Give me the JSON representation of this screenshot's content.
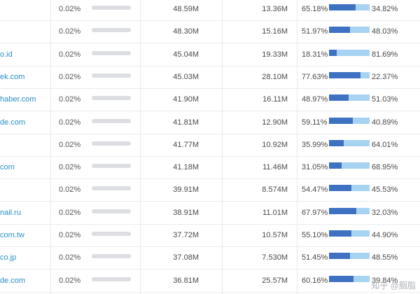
{
  "rows": [
    {
      "domain": "",
      "share": "0.02%",
      "visits": "48.59M",
      "unique": "13.36M",
      "left_pct": "65.18%",
      "right_pct": "34.82%",
      "split": 0.6518
    },
    {
      "domain": "",
      "share": "0.02%",
      "visits": "48.30M",
      "unique": "15.16M",
      "left_pct": "51.97%",
      "right_pct": "48.03%",
      "split": 0.5197
    },
    {
      "domain": "o.id",
      "share": "0.02%",
      "visits": "45.04M",
      "unique": "19.33M",
      "left_pct": "18.31%",
      "right_pct": "81.69%",
      "split": 0.1831
    },
    {
      "domain": "ek.com",
      "share": "0.02%",
      "visits": "45.03M",
      "unique": "28.10M",
      "left_pct": "77.63%",
      "right_pct": "22.37%",
      "split": 0.7763
    },
    {
      "domain": "haber.com",
      "share": "0.02%",
      "visits": "41.90M",
      "unique": "16.11M",
      "left_pct": "48.97%",
      "right_pct": "51.03%",
      "split": 0.4897
    },
    {
      "domain": "de.com",
      "share": "0.02%",
      "visits": "41.81M",
      "unique": "12.90M",
      "left_pct": "59.11%",
      "right_pct": "40.89%",
      "split": 0.5911
    },
    {
      "domain": "",
      "share": "0.02%",
      "visits": "41.77M",
      "unique": "10.92M",
      "left_pct": "35.99%",
      "right_pct": "64.01%",
      "split": 0.3599
    },
    {
      "domain": "com",
      "share": "0.02%",
      "visits": "41.18M",
      "unique": "11.46M",
      "left_pct": "31.05%",
      "right_pct": "68.95%",
      "split": 0.3105
    },
    {
      "domain": "",
      "share": "0.02%",
      "visits": "39.91M",
      "unique": "8.574M",
      "left_pct": "54.47%",
      "right_pct": "45.53%",
      "split": 0.5447
    },
    {
      "domain": "nail.ru",
      "share": "0.02%",
      "visits": "38.91M",
      "unique": "11.01M",
      "left_pct": "67.97%",
      "right_pct": "32.03%",
      "split": 0.6797
    },
    {
      "domain": "com.tw",
      "share": "0.02%",
      "visits": "37.72M",
      "unique": "10.57M",
      "left_pct": "55.10%",
      "right_pct": "44.90%",
      "split": 0.551
    },
    {
      "domain": "co.jp",
      "share": "0.02%",
      "visits": "37.08M",
      "unique": "7.530M",
      "left_pct": "51.45%",
      "right_pct": "48.55%",
      "split": 0.5145
    },
    {
      "domain": "de.com",
      "share": "0.02%",
      "visits": "36.81M",
      "unique": "25.57M",
      "left_pct": "60.16%",
      "right_pct": "39.84%",
      "split": 0.6016
    }
  ],
  "colors": {
    "domain_link": "#2a8fc9",
    "split_primary": "#3f71c2",
    "split_secondary": "#a7d3f2",
    "share_bar": "#dcdee2"
  },
  "watermark": "知乎 @胭脂"
}
